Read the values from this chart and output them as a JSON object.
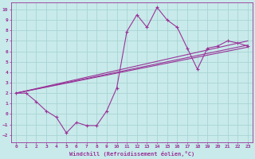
{
  "xlabel": "Windchill (Refroidissement éolien,°C)",
  "background_color": "#c8eaea",
  "grid_color": "#aad4d4",
  "line_color": "#993399",
  "xlim": [
    -0.5,
    23.5
  ],
  "ylim": [
    -2.7,
    10.7
  ],
  "xticks": [
    0,
    1,
    2,
    3,
    4,
    5,
    6,
    7,
    8,
    9,
    10,
    11,
    12,
    13,
    14,
    15,
    16,
    17,
    18,
    19,
    20,
    21,
    22,
    23
  ],
  "yticks": [
    -2,
    -1,
    0,
    1,
    2,
    3,
    4,
    5,
    6,
    7,
    8,
    9,
    10
  ],
  "main_line_x": [
    0,
    1,
    2,
    3,
    4,
    5,
    6,
    7,
    8,
    9,
    10,
    11,
    12,
    13,
    14,
    15,
    16,
    17,
    18,
    19,
    20,
    21,
    22,
    23
  ],
  "main_line_y": [
    2.0,
    2.0,
    1.2,
    0.3,
    -0.3,
    -1.8,
    -0.8,
    -1.1,
    -1.1,
    0.3,
    2.5,
    7.9,
    9.5,
    8.3,
    10.2,
    9.0,
    8.3,
    6.3,
    4.3,
    6.3,
    6.5,
    7.0,
    6.8,
    6.5
  ],
  "line2_x": [
    0,
    23
  ],
  "line2_y": [
    2.0,
    6.4
  ],
  "line3_x": [
    0,
    23
  ],
  "line3_y": [
    2.0,
    6.6
  ],
  "line4_x": [
    0,
    23
  ],
  "line4_y": [
    2.0,
    7.0
  ],
  "xlabel_fontsize": 5.0,
  "tick_fontsize": 4.5
}
